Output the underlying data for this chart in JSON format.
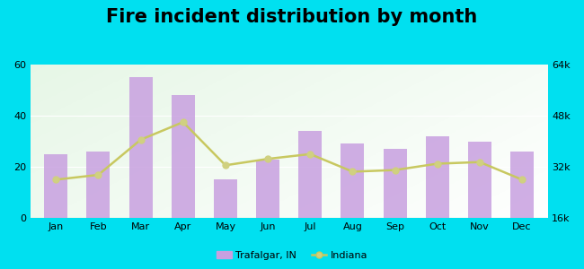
{
  "title": "Fire incident distribution by month",
  "months": [
    "Jan",
    "Feb",
    "Mar",
    "Apr",
    "May",
    "Jun",
    "Jul",
    "Aug",
    "Sep",
    "Oct",
    "Nov",
    "Dec"
  ],
  "bar_values": [
    25,
    26,
    55,
    48,
    15,
    23,
    34,
    29,
    27,
    32,
    30,
    26
  ],
  "line_values": [
    28000,
    29500,
    40500,
    46000,
    32500,
    34500,
    36000,
    30500,
    31000,
    33000,
    33500,
    28000
  ],
  "bar_color": "#c8a0e0",
  "line_color": "#c8c860",
  "line_marker_color": "#d0d080",
  "bar_ylim": [
    0,
    60
  ],
  "bar_yticks": [
    0,
    20,
    40,
    60
  ],
  "line_ylim": [
    16000,
    64000
  ],
  "line_yticks": [
    16000,
    32000,
    48000,
    64000
  ],
  "line_ytick_labels": [
    "16k",
    "32k",
    "48k",
    "64k"
  ],
  "outer_bg": "#00e0f0",
  "title_fontsize": 15,
  "legend_trafalgar": "Trafalgar, IN",
  "legend_indiana": "Indiana"
}
